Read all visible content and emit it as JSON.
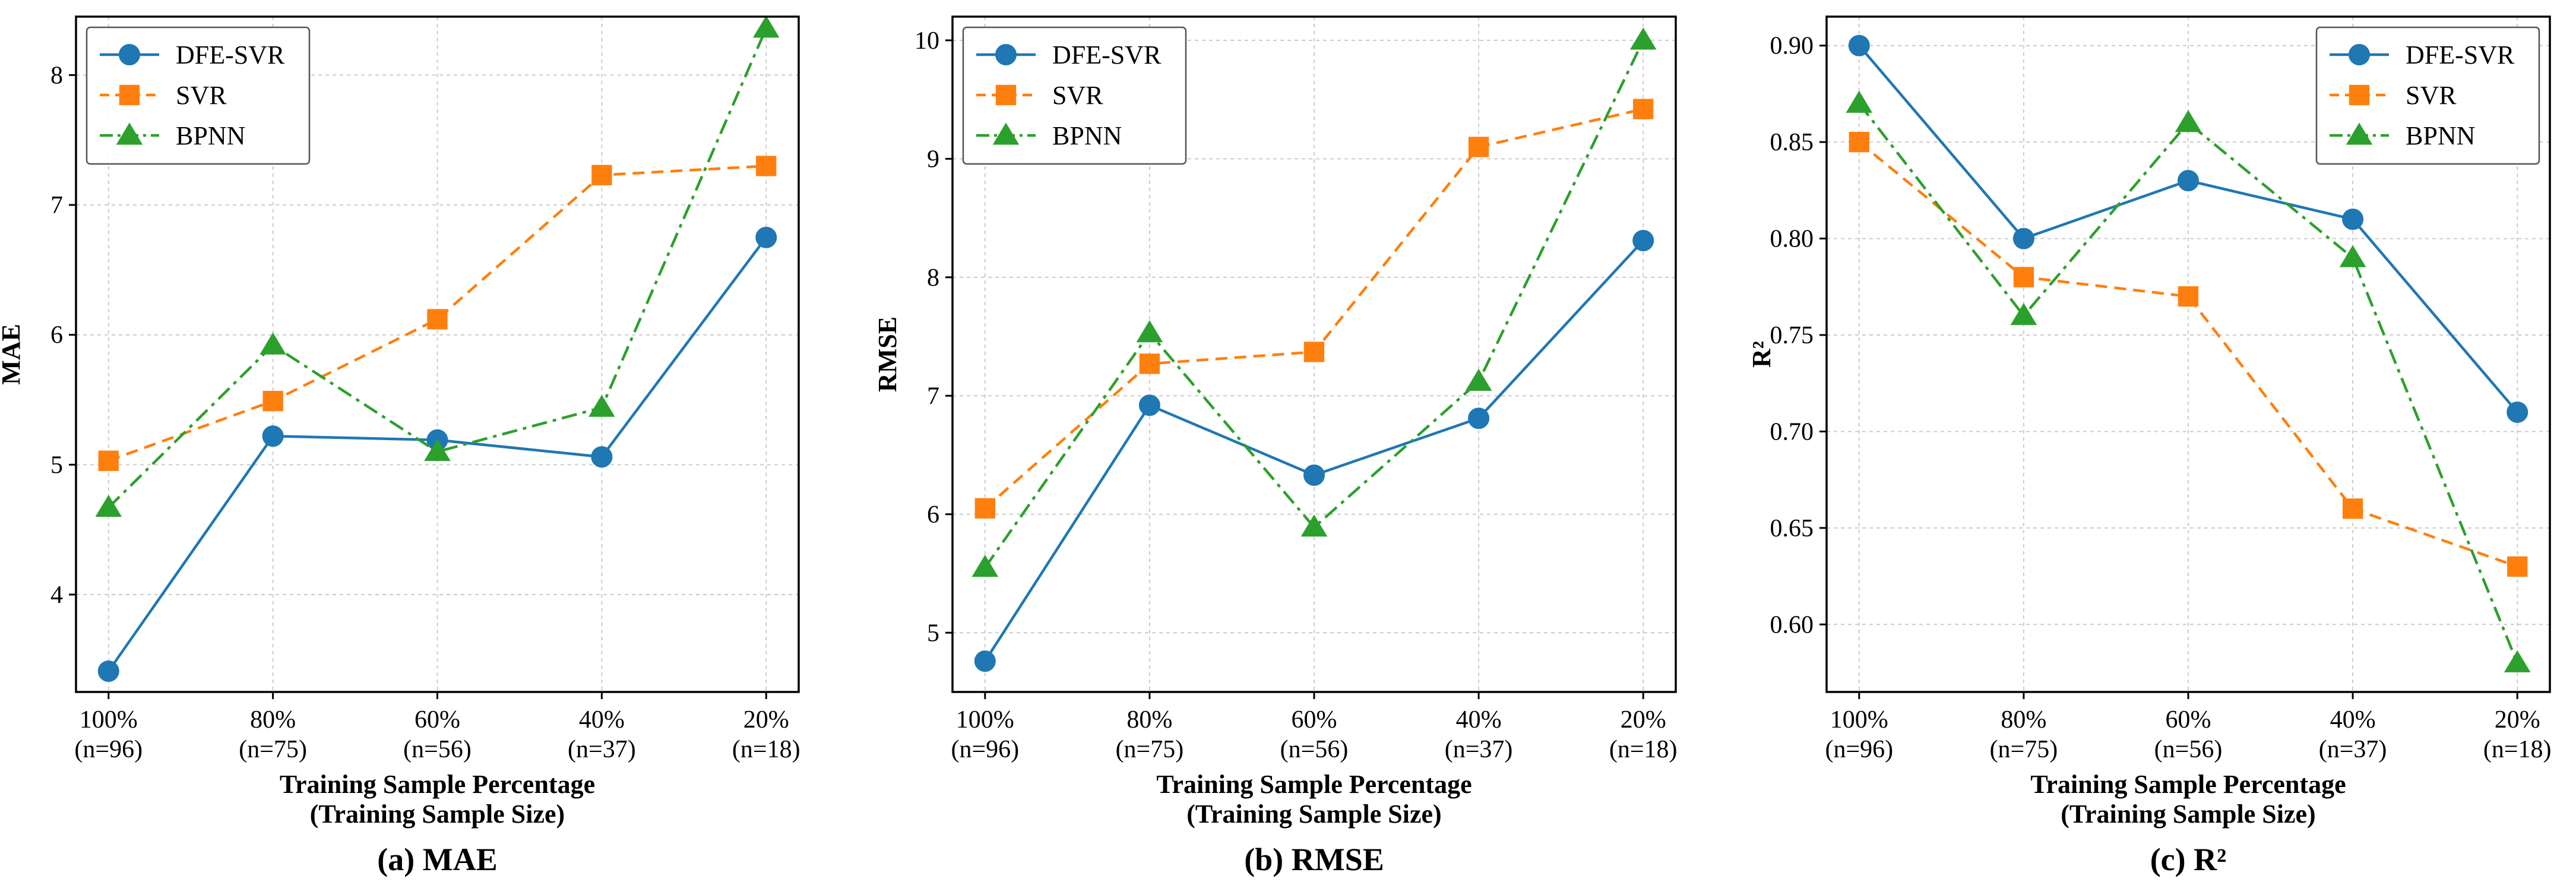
{
  "colors": {
    "DFE-SVR": "#1f77b4",
    "SVR": "#ff7f0e",
    "BPNN": "#2ca02c"
  },
  "chart_data": [
    {
      "type": "line",
      "subtitle": "(a) MAE",
      "xlabel": [
        "Training Sample Percentage",
        "(Training Sample Size)"
      ],
      "ylabel": "MAE",
      "categories": [
        [
          "100%",
          "(n=96)"
        ],
        [
          "80%",
          "(n=75)"
        ],
        [
          "60%",
          "(n=56)"
        ],
        [
          "40%",
          "(n=37)"
        ],
        [
          "20%",
          "(n=18)"
        ]
      ],
      "ylim": [
        3.25,
        8.45
      ],
      "yticks": [
        4,
        5,
        6,
        7,
        8
      ],
      "ytick_labels": [
        "4",
        "5",
        "6",
        "7",
        "8"
      ],
      "grid": true,
      "legend": "top-left",
      "series": [
        {
          "name": "DFE-SVR",
          "marker": "circle",
          "dash": "solid",
          "values": [
            3.41,
            5.22,
            5.19,
            5.06,
            6.75
          ]
        },
        {
          "name": "SVR",
          "marker": "square",
          "dash": "dashed",
          "values": [
            5.03,
            5.49,
            6.12,
            7.23,
            7.3
          ]
        },
        {
          "name": "BPNN",
          "marker": "triangle",
          "dash": "dashdot",
          "values": [
            4.67,
            5.92,
            5.1,
            5.44,
            8.36
          ]
        }
      ]
    },
    {
      "type": "line",
      "subtitle": "(b) RMSE",
      "xlabel": [
        "Training Sample Percentage",
        "(Training Sample Size)"
      ],
      "ylabel": "RMSE",
      "categories": [
        [
          "100%",
          "(n=96)"
        ],
        [
          "80%",
          "(n=75)"
        ],
        [
          "60%",
          "(n=56)"
        ],
        [
          "40%",
          "(n=37)"
        ],
        [
          "20%",
          "(n=18)"
        ]
      ],
      "ylim": [
        4.5,
        10.2
      ],
      "yticks": [
        5,
        6,
        7,
        8,
        9,
        10
      ],
      "ytick_labels": [
        "5",
        "6",
        "7",
        "8",
        "9",
        "10"
      ],
      "grid": true,
      "legend": "top-left",
      "series": [
        {
          "name": "DFE-SVR",
          "marker": "circle",
          "dash": "solid",
          "values": [
            4.76,
            6.92,
            6.33,
            6.81,
            8.31
          ]
        },
        {
          "name": "SVR",
          "marker": "square",
          "dash": "dashed",
          "values": [
            6.05,
            7.27,
            7.37,
            9.1,
            9.42
          ]
        },
        {
          "name": "BPNN",
          "marker": "triangle",
          "dash": "dashdot",
          "values": [
            5.55,
            7.53,
            5.89,
            7.12,
            10.0
          ]
        }
      ]
    },
    {
      "type": "line",
      "subtitle": "(c) R²",
      "xlabel": [
        "Training Sample Percentage",
        "(Training Sample Size)"
      ],
      "ylabel": "R²",
      "categories": [
        [
          "100%",
          "(n=96)"
        ],
        [
          "80%",
          "(n=75)"
        ],
        [
          "60%",
          "(n=56)"
        ],
        [
          "40%",
          "(n=37)"
        ],
        [
          "20%",
          "(n=18)"
        ]
      ],
      "ylim": [
        0.565,
        0.915
      ],
      "yticks": [
        0.6,
        0.65,
        0.7,
        0.75,
        0.8,
        0.85,
        0.9
      ],
      "ytick_labels": [
        "0.60",
        "0.65",
        "0.70",
        "0.75",
        "0.80",
        "0.85",
        "0.90"
      ],
      "grid": true,
      "legend": "top-right",
      "series": [
        {
          "name": "DFE-SVR",
          "marker": "circle",
          "dash": "solid",
          "values": [
            0.9,
            0.8,
            0.83,
            0.81,
            0.71
          ]
        },
        {
          "name": "SVR",
          "marker": "square",
          "dash": "dashed",
          "values": [
            0.85,
            0.78,
            0.77,
            0.66,
            0.63
          ]
        },
        {
          "name": "BPNN",
          "marker": "triangle",
          "dash": "dashdot",
          "values": [
            0.87,
            0.76,
            0.86,
            0.79,
            0.58
          ]
        }
      ]
    }
  ]
}
